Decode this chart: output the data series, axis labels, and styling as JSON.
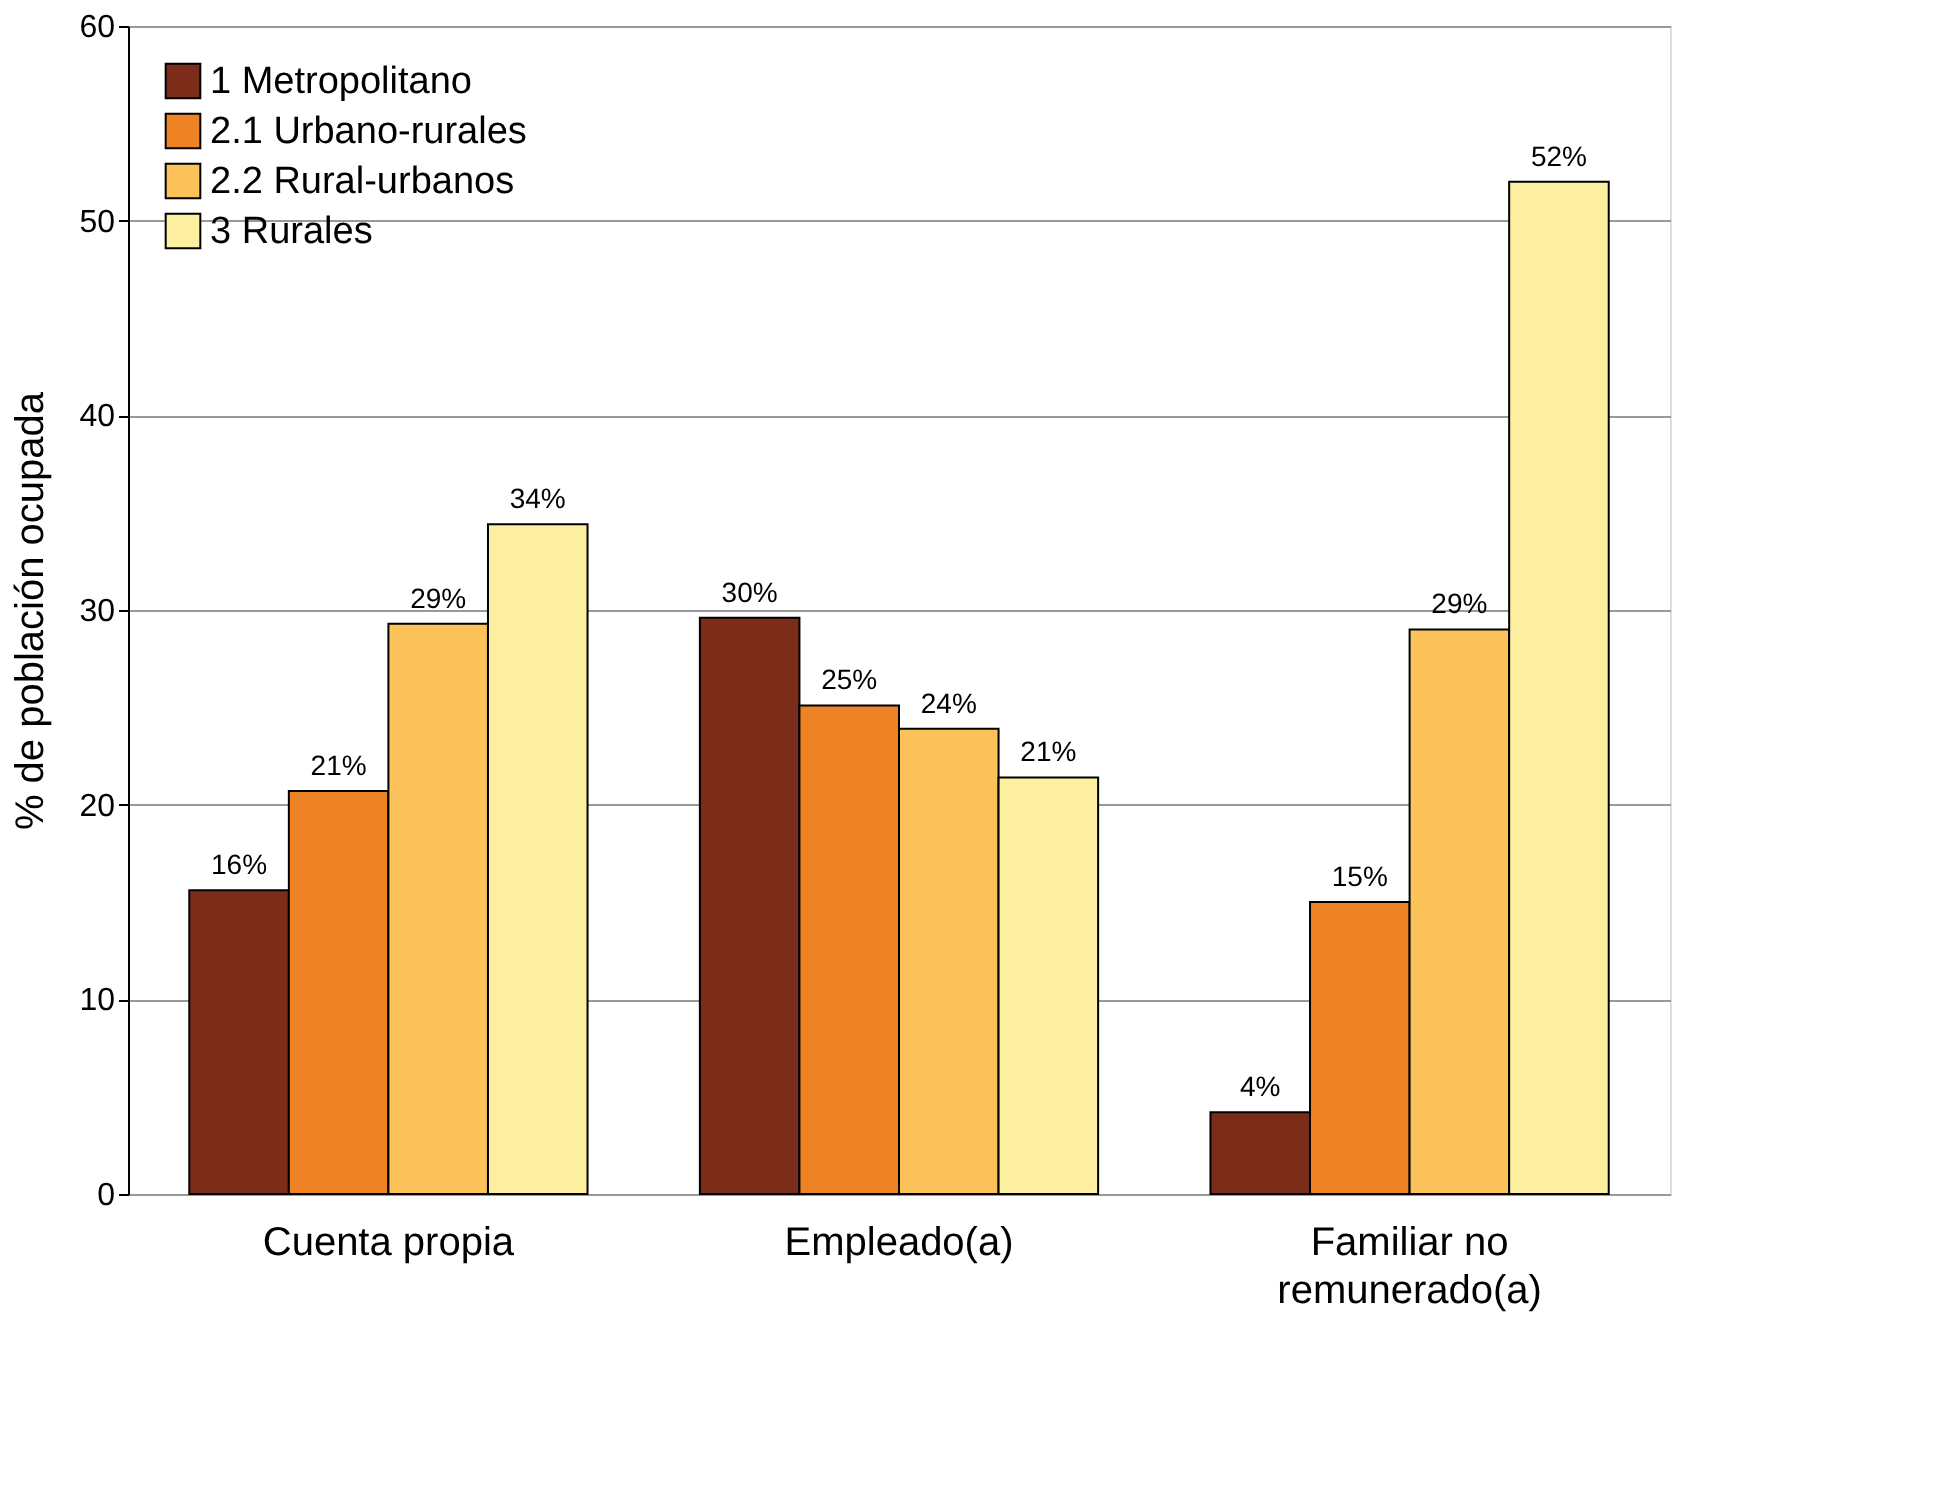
{
  "chart_data": {
    "type": "bar",
    "ylabel": "% de población ocupada",
    "categories": [
      "Cuenta propia",
      "Empleado(a)",
      "Familiar no remunerado(a)"
    ],
    "series": [
      {
        "name": "1 Metropolitano",
        "color": "#7b2d1a",
        "values": [
          15.6,
          29.6,
          4.2
        ],
        "value_labels": [
          "16%",
          "30%",
          "4%"
        ]
      },
      {
        "name": "2.1 Urbano-rurales",
        "color": "#ee8326",
        "values": [
          20.7,
          25.1,
          15.0
        ],
        "value_labels": [
          "21%",
          "25%",
          "15%"
        ]
      },
      {
        "name": "2.2 Rural-urbanos",
        "color": "#fbc35a",
        "values": [
          29.3,
          23.9,
          29.0
        ],
        "value_labels": [
          "29%",
          "24%",
          "29%"
        ]
      },
      {
        "name": "3 Rurales",
        "color": "#fcf0a0",
        "values": [
          34.4,
          21.4,
          52.0
        ],
        "value_labels": [
          "34%",
          "21%",
          "52%"
        ]
      }
    ],
    "ylim": [
      0,
      60
    ],
    "yticks": [
      0,
      10,
      20,
      30,
      40,
      50,
      60
    ],
    "grid": "y",
    "legend": "top left"
  }
}
